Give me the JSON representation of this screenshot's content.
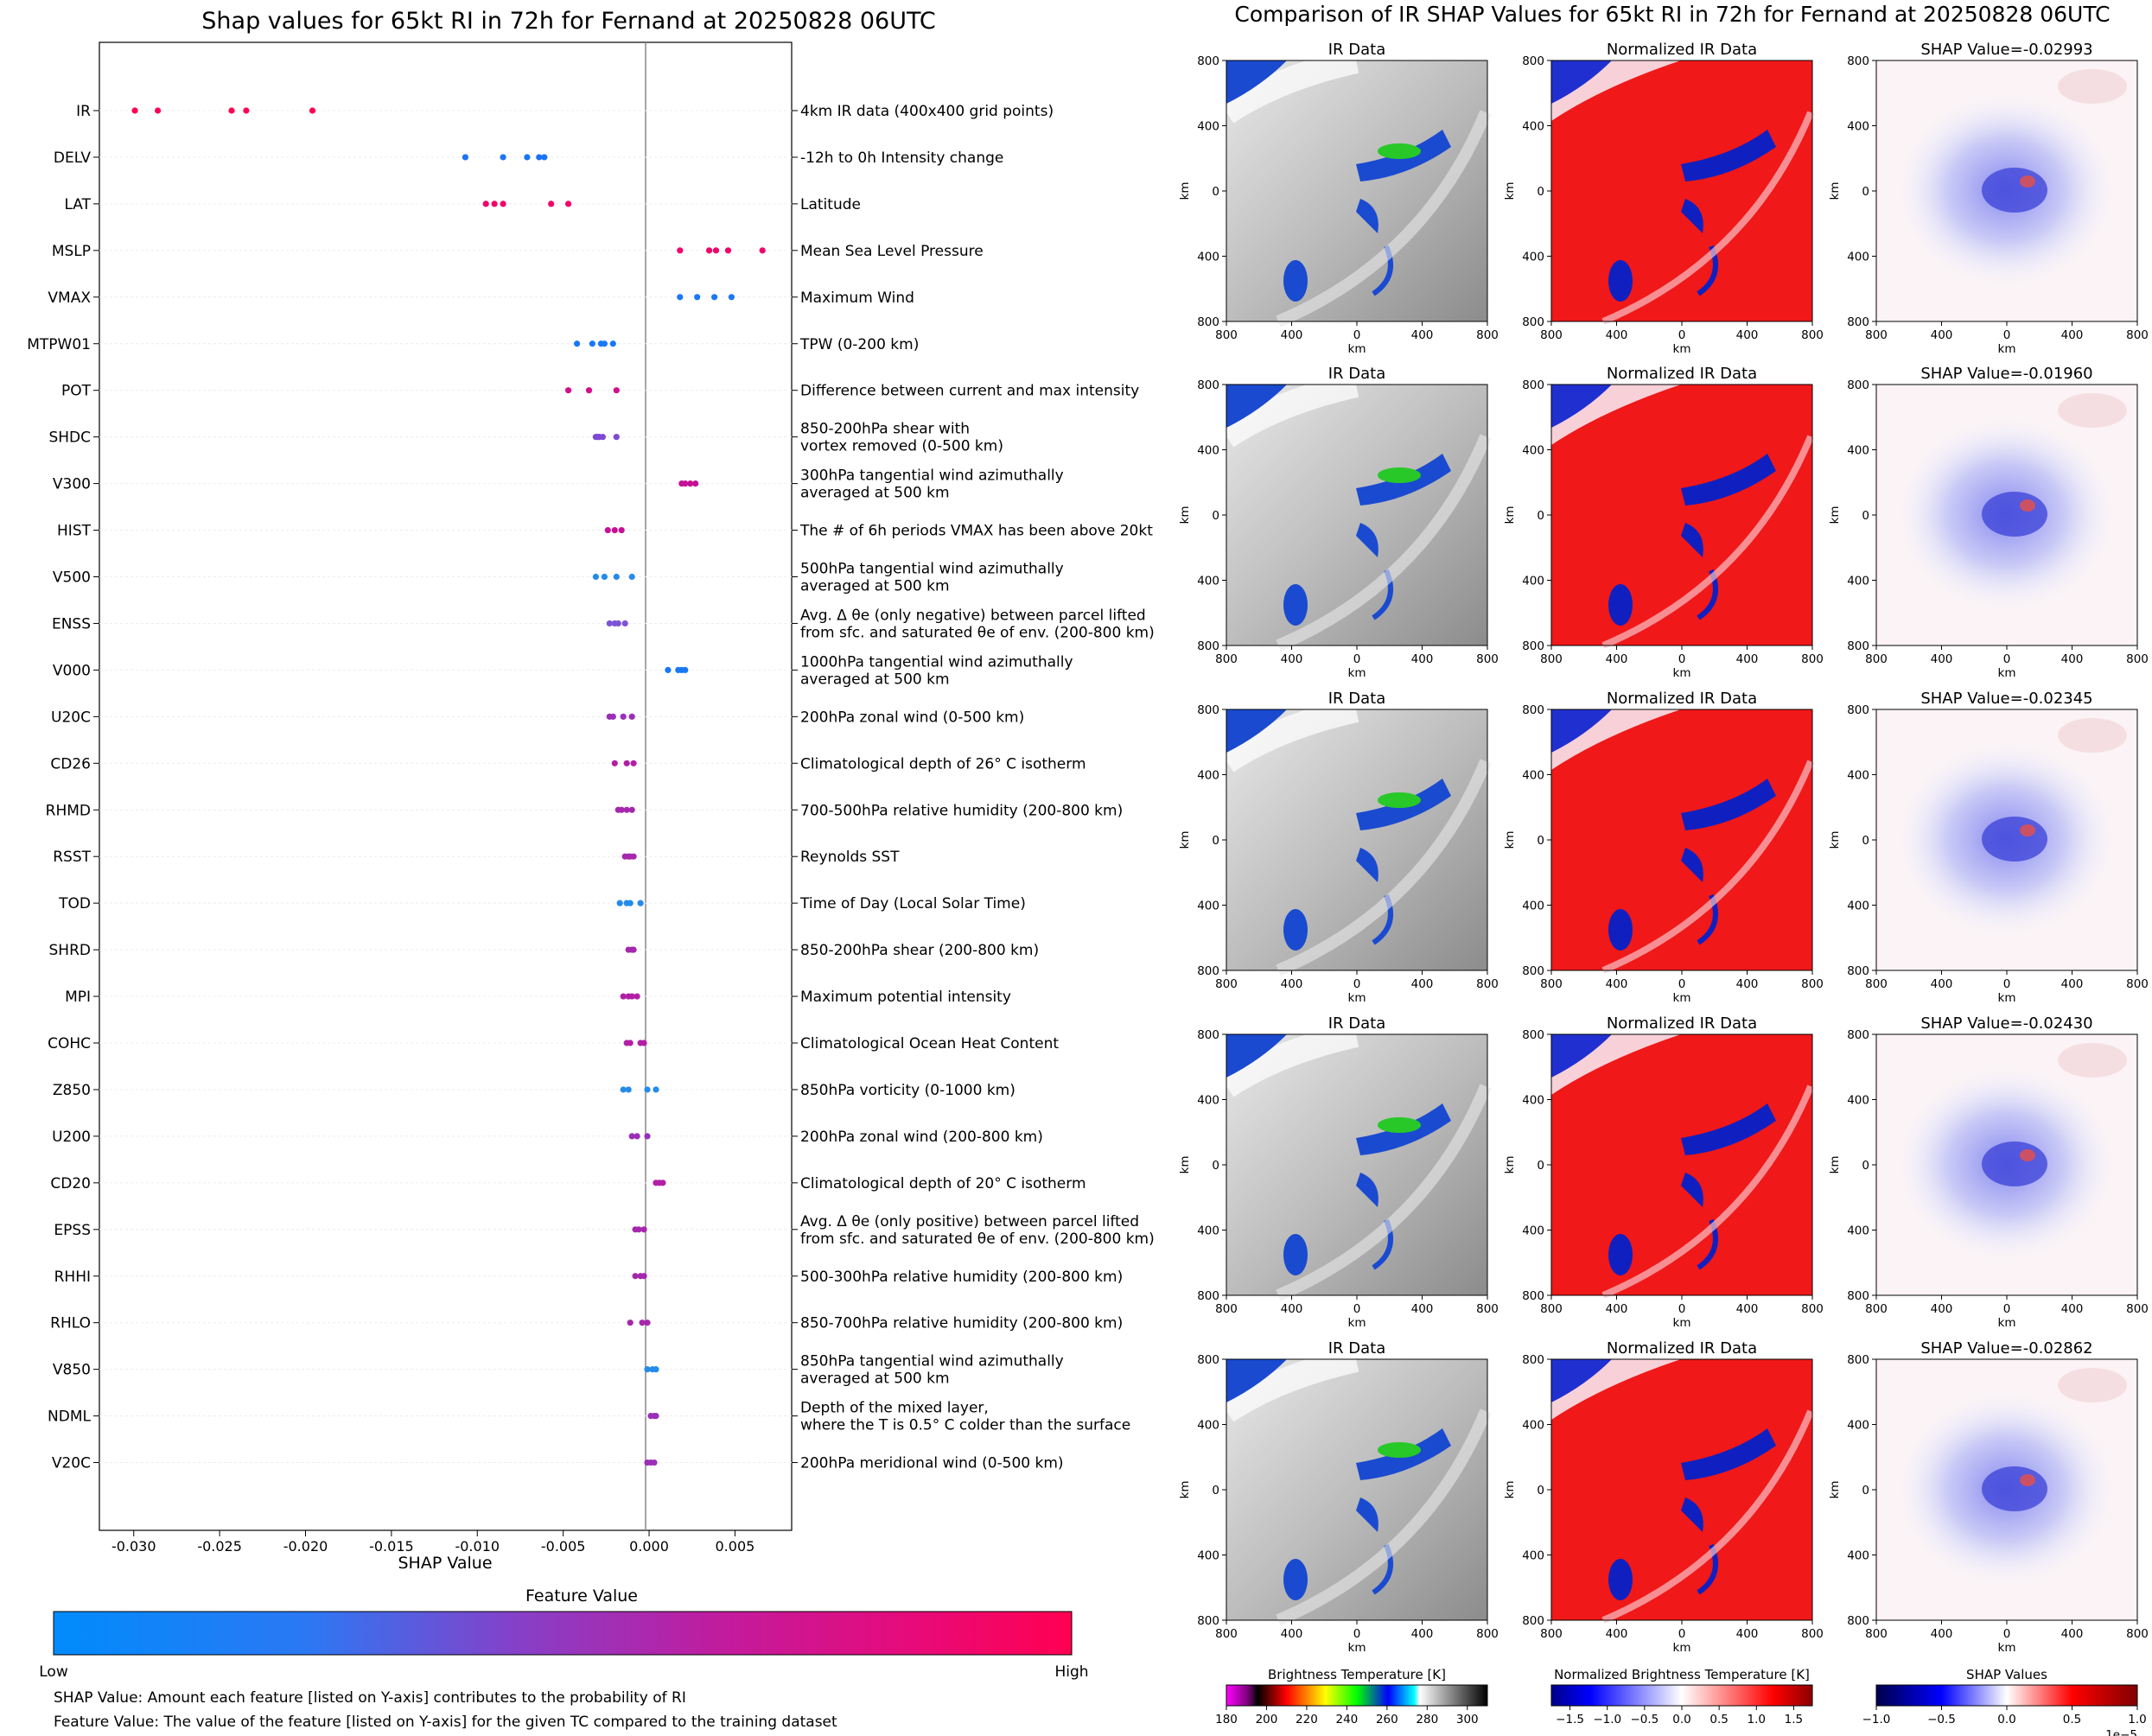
{
  "left_panel": {
    "title": "Shap values for 65kt RI in 72h for Fernand at 20250828 06UTC",
    "xlabel": "SHAP Value",
    "xticks": [
      "-0.030",
      "-0.025",
      "-0.020",
      "-0.015",
      "-0.010",
      "-0.005",
      "0.000",
      "0.005"
    ],
    "colorbar": {
      "title": "Feature Value",
      "low_label": "Low",
      "high_label": "High",
      "colors": [
        "#008bfb",
        "#3e64f0",
        "#8a33c4",
        "#c4129e",
        "#ff0052"
      ]
    },
    "notes": [
      "SHAP Value: Amount each feature [listed on Y-axis] contributes to the probability of RI",
      "Feature Value: The value of the feature [listed on Y-axis] for the given TC compared to the training dataset"
    ]
  },
  "chart_data": {
    "type": "scatter",
    "title": "Shap values for 65kt RI in 72h for Fernand at 20250828 06UTC",
    "xlabel": "SHAP Value",
    "xlim": [
      -0.032,
      0.0083
    ],
    "features": [
      {
        "name": "IR",
        "desc": [
          "4km IR data (400x400 grid points)"
        ],
        "values": [
          -0.02993,
          -0.0286,
          -0.0243,
          -0.02345,
          -0.0196
        ],
        "color": "#ff0052"
      },
      {
        "name": "DELV",
        "desc": [
          "-12h to 0h Intensity change"
        ],
        "values": [
          -0.0107,
          -0.0085,
          -0.0071,
          -0.0064,
          -0.0061
        ],
        "color": "#1c73f5"
      },
      {
        "name": "LAT",
        "desc": [
          "Latitude"
        ],
        "values": [
          -0.0095,
          -0.009,
          -0.0085,
          -0.0057,
          -0.0047
        ],
        "color": "#f0066a"
      },
      {
        "name": "MSLP",
        "desc": [
          "Mean Sea Level Pressure"
        ],
        "values": [
          0.0018,
          0.0035,
          0.0039,
          0.0046,
          0.0066
        ],
        "color": "#f0066a"
      },
      {
        "name": "VMAX",
        "desc": [
          "Maximum Wind"
        ],
        "values": [
          0.0018,
          0.0028,
          0.0038,
          0.0048
        ],
        "color": "#1a78f6"
      },
      {
        "name": "MTPW01",
        "desc": [
          "TPW (0-200 km)"
        ],
        "values": [
          -0.0042,
          -0.0033,
          -0.0028,
          -0.0026,
          -0.0021
        ],
        "color": "#1a78f6"
      },
      {
        "name": "POT",
        "desc": [
          "Difference between current and max intensity"
        ],
        "values": [
          -0.0047,
          -0.0035,
          -0.0019
        ],
        "color": "#d10f8c"
      },
      {
        "name": "SHDC",
        "desc": [
          "850-200hPa shear with",
          "vortex removed (0-500 km)"
        ],
        "values": [
          -0.0031,
          -0.003,
          -0.0029,
          -0.0027,
          -0.0019
        ],
        "color": "#7f49d6"
      },
      {
        "name": "V300",
        "desc": [
          "300hPa tangential wind azimuthally",
          "averaged at 500 km"
        ],
        "values": [
          0.0019,
          0.0021,
          0.0024,
          0.0027
        ],
        "color": "#c61097"
      },
      {
        "name": "HIST",
        "desc": [
          "The # of 6h periods VMAX has been above 20kt"
        ],
        "values": [
          -0.0024,
          -0.002,
          -0.0016
        ],
        "color": "#c61097"
      },
      {
        "name": "V500",
        "desc": [
          "500hPa tangential wind azimuthally",
          "averaged at 500 km"
        ],
        "values": [
          -0.0031,
          -0.0026,
          -0.0019,
          -0.001
        ],
        "color": "#258be8"
      },
      {
        "name": "ENSS",
        "desc": [
          "Avg. Δ θe (only negative) between parcel lifted",
          "from sfc. and saturated θe of env. (200-800 km)"
        ],
        "values": [
          -0.0023,
          -0.002,
          -0.0018,
          -0.0014
        ],
        "color": "#7d54d6"
      },
      {
        "name": "V000",
        "desc": [
          "1000hPa tangential wind azimuthally",
          "averaged at 500 km"
        ],
        "values": [
          0.0011,
          0.0017,
          0.0019,
          0.0021
        ],
        "color": "#1a78f6"
      },
      {
        "name": "U20C",
        "desc": [
          "200hPa zonal wind (0-500 km)"
        ],
        "values": [
          -0.0023,
          -0.0021,
          -0.0015,
          -0.001
        ],
        "color": "#9b2fb8"
      },
      {
        "name": "CD26",
        "desc": [
          "Climatological depth of 26° C isotherm"
        ],
        "values": [
          -0.002,
          -0.0013,
          -0.0009
        ],
        "color": "#b21fa6"
      },
      {
        "name": "RHMD",
        "desc": [
          "700-500hPa relative humidity (200-800 km)"
        ],
        "values": [
          -0.0018,
          -0.0016,
          -0.0013,
          -0.001
        ],
        "color": "#a527ad"
      },
      {
        "name": "RSST",
        "desc": [
          "Reynolds SST"
        ],
        "values": [
          -0.0014,
          -0.0012,
          -0.0011,
          -0.0009
        ],
        "color": "#a527ad"
      },
      {
        "name": "TOD",
        "desc": [
          "Time of Day (Local Solar Time)"
        ],
        "values": [
          -0.0017,
          -0.0013,
          -0.0011,
          -0.0005
        ],
        "color": "#258be8"
      },
      {
        "name": "SHRD",
        "desc": [
          "850-200hPa shear (200-800 km)"
        ],
        "values": [
          -0.0012,
          -0.001,
          -0.0009
        ],
        "color": "#a527ad"
      },
      {
        "name": "MPI",
        "desc": [
          "Maximum potential intensity"
        ],
        "values": [
          -0.0015,
          -0.0012,
          -0.001,
          -0.0007
        ],
        "color": "#b21fa6"
      },
      {
        "name": "COHC",
        "desc": [
          "Climatological Ocean Heat Content"
        ],
        "values": [
          -0.0013,
          -0.0011,
          -0.0005,
          -0.0003
        ],
        "color": "#b21fa6"
      },
      {
        "name": "Z850",
        "desc": [
          "850hPa vorticity (0-1000 km)"
        ],
        "values": [
          -0.0015,
          -0.0012,
          -0.0001,
          0.0004
        ],
        "color": "#258be8"
      },
      {
        "name": "U200",
        "desc": [
          "200hPa zonal wind (200-800 km)"
        ],
        "values": [
          -0.001,
          -0.0007,
          -0.0001
        ],
        "color": "#9b2fb8"
      },
      {
        "name": "CD20",
        "desc": [
          "Climatological depth of 20° C isotherm"
        ],
        "values": [
          0.0004,
          0.0006,
          0.0008
        ],
        "color": "#b21fa6"
      },
      {
        "name": "EPSS",
        "desc": [
          "Avg. Δ θe (only positive) between parcel lifted",
          "from sfc. and saturated θe of env. (200-800 km)"
        ],
        "values": [
          -0.0008,
          -0.0006,
          -0.0003
        ],
        "color": "#a527ad"
      },
      {
        "name": "RHHI",
        "desc": [
          "500-300hPa relative humidity (200-800 km)"
        ],
        "values": [
          -0.0008,
          -0.0005,
          -0.0003
        ],
        "color": "#a527ad"
      },
      {
        "name": "RHLO",
        "desc": [
          "850-700hPa relative humidity (200-800 km)"
        ],
        "values": [
          -0.0011,
          -0.0004,
          -0.0001
        ],
        "color": "#a527ad"
      },
      {
        "name": "V850",
        "desc": [
          "850hPa tangential wind azimuthally",
          "averaged at 500 km"
        ],
        "values": [
          -0.0001,
          0.0002,
          0.0004
        ],
        "color": "#258be8"
      },
      {
        "name": "NDML",
        "desc": [
          "Depth of the mixed layer,",
          "where the T is 0.5° C colder than the surface"
        ],
        "values": [
          0.0001,
          0.0003,
          0.0004
        ],
        "color": "#9b2fb8"
      },
      {
        "name": "V20C",
        "desc": [
          "200hPa meridional wind (0-500 km)"
        ],
        "values": [
          -0.0001,
          0.0001,
          0.0003
        ],
        "color": "#9b2fb8"
      }
    ]
  },
  "right_panel": {
    "title": "Comparison of IR SHAP Values for 65kt RI in 72h for Fernand at 20250828 06UTC",
    "col_titles": [
      "IR Data",
      "Normalized IR Data"
    ],
    "shap_titles": [
      "SHAP Value=-0.02993",
      "SHAP Value=-0.01960",
      "SHAP Value=-0.02345",
      "SHAP Value=-0.02430",
      "SHAP Value=-0.02862"
    ],
    "km_label": "km",
    "ticks": [
      "800",
      "400",
      "0",
      "400",
      "800"
    ],
    "colorbars": [
      {
        "title": "Brightness Temperature [K]",
        "ticks": [
          "180",
          "200",
          "220",
          "240",
          "260",
          "280",
          "300"
        ],
        "range": [
          180,
          310
        ]
      },
      {
        "title": "Normalized Brightness Temperature [K]",
        "ticks": [
          "−1.5",
          "−1.0",
          "−0.5",
          "0.0",
          "0.5",
          "1.0",
          "1.5"
        ],
        "range": [
          -1.75,
          1.75
        ]
      },
      {
        "title": "SHAP Values",
        "ticks": [
          "−1.0",
          "−0.5",
          "0.0",
          "0.5",
          "1.0"
        ],
        "range": [
          -1.0,
          1.0
        ],
        "offset_label": "1e−5"
      }
    ]
  }
}
